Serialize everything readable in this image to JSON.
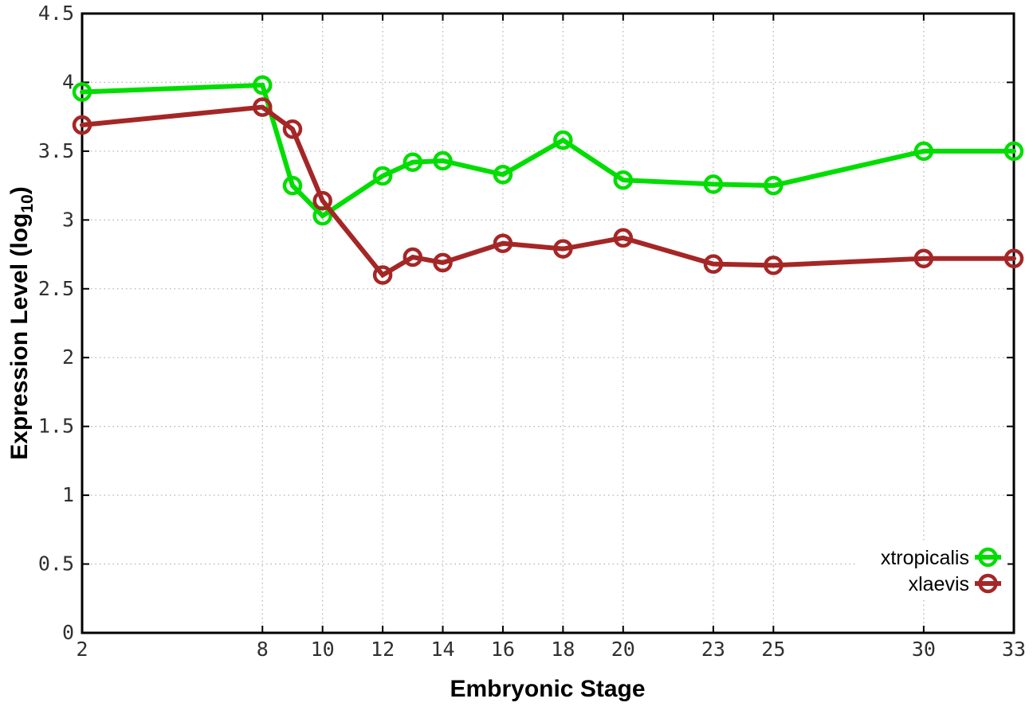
{
  "chart_data": {
    "type": "line",
    "title": "",
    "xlabel": "Embryonic Stage",
    "ylabel": "Expression Level (log10)",
    "ylabel_parts": {
      "main": "Expression Level (log",
      "sub": "10",
      "end": ")"
    },
    "x": [
      2,
      8,
      9,
      10,
      12,
      13,
      14,
      16,
      18,
      20,
      23,
      25,
      30,
      33
    ],
    "series": [
      {
        "name": "xtropicalis",
        "color": "#00dd00",
        "marker": "open-circle",
        "values": [
          3.93,
          3.98,
          3.25,
          3.03,
          3.32,
          3.42,
          3.43,
          3.33,
          3.58,
          3.29,
          3.26,
          3.25,
          3.5,
          3.5
        ]
      },
      {
        "name": "xlaevis",
        "color": "#a52626",
        "marker": "open-circle",
        "values": [
          3.69,
          3.82,
          3.66,
          3.14,
          2.6,
          2.73,
          2.69,
          2.83,
          2.79,
          2.87,
          2.68,
          2.67,
          2.72,
          2.72
        ]
      }
    ],
    "x_ticks": [
      2,
      8,
      10,
      12,
      14,
      16,
      18,
      20,
      23,
      25,
      30,
      33
    ],
    "y_ticks": [
      0,
      0.5,
      1,
      1.5,
      2,
      2.5,
      3,
      3.5,
      4,
      4.5
    ],
    "xlim": [
      2,
      33
    ],
    "ylim": [
      0,
      4.5
    ],
    "grid": true,
    "legend_position": "bottom-right",
    "colors": {
      "background": "#ffffff",
      "axis": "#000000",
      "grid": "#b5b5b5",
      "tick_label": "#303030"
    }
  }
}
